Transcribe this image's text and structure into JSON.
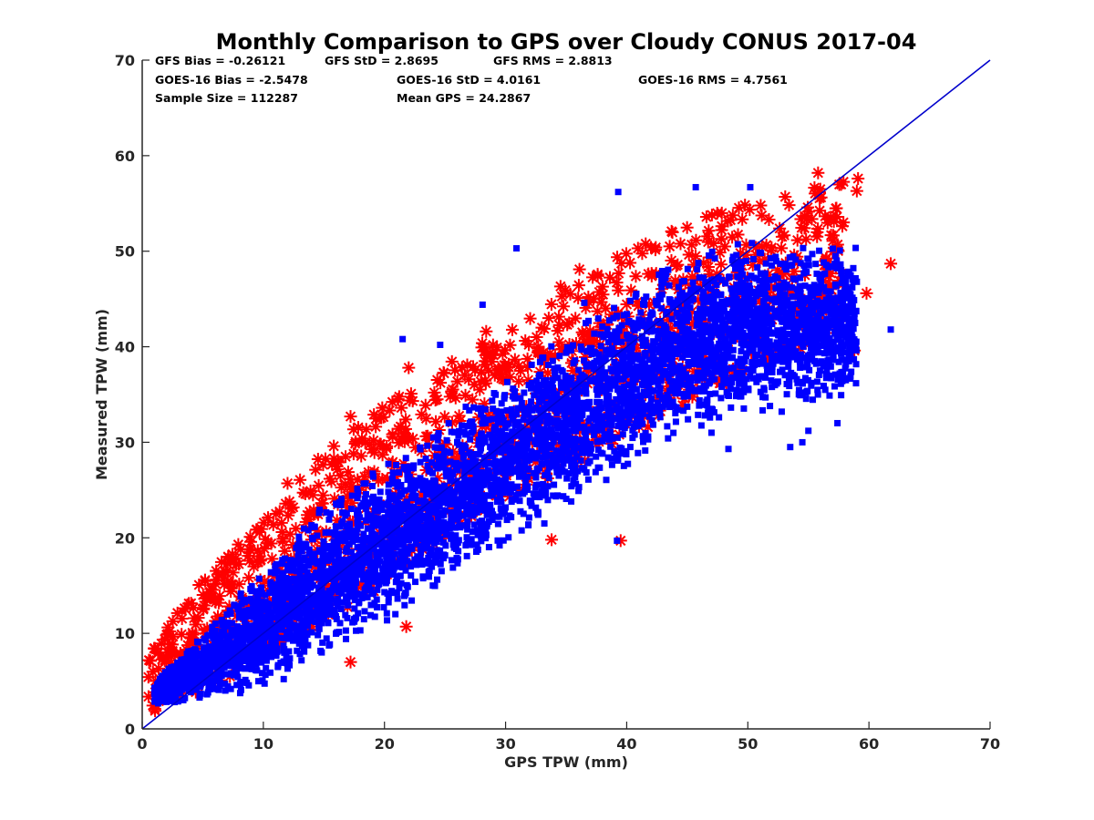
{
  "chart_data": {
    "type": "scatter",
    "title": "Monthly Comparison to GPS over Cloudy CONUS 2017-04",
    "xlabel": "GPS TPW (mm)",
    "ylabel": "Measured TPW (mm)",
    "xlim": [
      0,
      70
    ],
    "ylim": [
      0,
      70
    ],
    "xticks": [
      "0",
      "10",
      "20",
      "30",
      "40",
      "50",
      "60",
      "70"
    ],
    "yticks": [
      "0",
      "10",
      "20",
      "30",
      "40",
      "50",
      "60",
      "70"
    ],
    "grid": false,
    "legend": "none",
    "stats": {
      "gfs_bias": "GFS Bias = -0.26121",
      "gfs_std": "GFS StD = 2.8695",
      "gfs_rms": "GFS RMS = 2.8813",
      "goes_bias": "GOES-16 Bias = -2.5478",
      "goes_std": "GOES-16 StD = 4.0161",
      "goes_rms": "GOES-16 RMS = 4.7561",
      "sample_size": "Sample Size = 112287",
      "mean_gps": "Mean GPS = 24.2867"
    },
    "reference_line": {
      "x": [
        0,
        70
      ],
      "y": [
        0,
        70
      ],
      "color": "#0000cc"
    },
    "series": [
      {
        "marker": "asterisk",
        "color": "#ff0000",
        "band": [
          [
            0.5,
            1.5,
            8
          ],
          [
            5,
            4,
            16
          ],
          [
            10,
            7,
            22
          ],
          [
            15,
            11,
            29
          ],
          [
            20,
            15,
            34
          ],
          [
            25,
            20,
            38
          ],
          [
            30,
            24,
            42
          ],
          [
            35,
            27,
            47
          ],
          [
            40,
            30,
            50
          ],
          [
            45,
            34,
            53
          ],
          [
            50,
            37,
            55
          ],
          [
            55,
            40,
            57
          ],
          [
            58,
            42,
            58
          ]
        ],
        "outliers": [
          [
            61.8,
            48.7
          ],
          [
            39.5,
            19.7
          ],
          [
            33.8,
            19.8
          ],
          [
            17.2,
            7.0
          ],
          [
            21.8,
            10.7
          ],
          [
            55.8,
            58.2
          ],
          [
            59.1,
            57.6
          ],
          [
            59.0,
            56.3
          ],
          [
            36.1,
            48.1
          ],
          [
            42.0,
            50.4
          ],
          [
            28.4,
            41.6
          ],
          [
            22.0,
            37.8
          ],
          [
            17.2,
            32.7
          ],
          [
            12.0,
            25.7
          ],
          [
            2.2,
            8.0
          ],
          [
            59.8,
            45.6
          ],
          [
            58.8,
            39.6
          ],
          [
            33.0,
            42.0
          ]
        ]
      },
      {
        "marker": "square",
        "color": "#0000ff",
        "band": [
          [
            1,
            2.5,
            5
          ],
          [
            5,
            3,
            10
          ],
          [
            10,
            4,
            17
          ],
          [
            15,
            7,
            24
          ],
          [
            20,
            11,
            28
          ],
          [
            25,
            15,
            33
          ],
          [
            30,
            19,
            37
          ],
          [
            35,
            23,
            42
          ],
          [
            40,
            27,
            46
          ],
          [
            45,
            31,
            50
          ],
          [
            50,
            33,
            51
          ],
          [
            55,
            33,
            51
          ],
          [
            59,
            35,
            51
          ]
        ],
        "outliers": [
          [
            39.3,
            56.2
          ],
          [
            61.8,
            41.8
          ],
          [
            47.0,
            31.0
          ],
          [
            48.4,
            29.3
          ],
          [
            54.5,
            30.0
          ],
          [
            53.5,
            29.5
          ],
          [
            55.0,
            31.2
          ],
          [
            57.4,
            32.0
          ],
          [
            30.9,
            50.3
          ],
          [
            21.5,
            40.8
          ],
          [
            24.6,
            40.2
          ],
          [
            28.1,
            44.4
          ],
          [
            45.7,
            56.7
          ],
          [
            50.2,
            56.7
          ],
          [
            36.5,
            44.6
          ],
          [
            38.9,
            43.0
          ],
          [
            39.2,
            19.7
          ],
          [
            33.2,
            21.5
          ]
        ]
      }
    ]
  }
}
